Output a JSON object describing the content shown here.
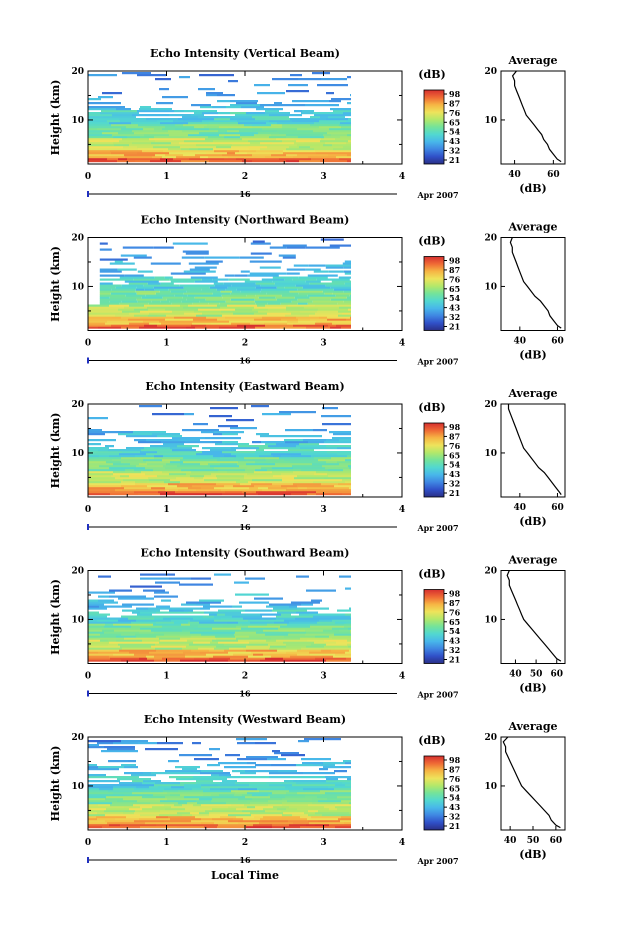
{
  "figure": {
    "footer_label": "Local Time",
    "date_label": "Apr 2007",
    "day_label": "16"
  },
  "colorbar": {
    "unit": "(dB)",
    "ticks": [
      "98",
      "87",
      "76",
      "65",
      "54",
      "43",
      "32",
      "21"
    ],
    "colors": [
      "#2a2f86",
      "#3050c8",
      "#3f86e2",
      "#48b7ea",
      "#52d8d0",
      "#74e39a",
      "#b3e86a",
      "#eee35b",
      "#f6b544",
      "#ef6a35",
      "#d62f2f"
    ]
  },
  "chart_data": [
    {
      "type": "heatmap",
      "title": "Echo Intensity (Vertical Beam)",
      "xlabel": "",
      "ylabel": "Height (km)",
      "x_ticks": [
        "0",
        "1",
        "2",
        "3",
        "4"
      ],
      "y_ticks": [
        "20",
        "10"
      ],
      "xlim": [
        0,
        4
      ],
      "ylim": [
        1,
        20
      ],
      "data_x_end": 3.35,
      "color_range_db": [
        21,
        98
      ],
      "profile": {
        "title": "Average",
        "xlabel": "(dB)",
        "x_ticks": [
          "40",
          "60"
        ],
        "xlim": [
          33,
          66
        ],
        "y_ticks": [
          "20",
          "10"
        ],
        "height_km": [
          1.5,
          2,
          3,
          4,
          5,
          6,
          7,
          8,
          9,
          10,
          11,
          12,
          13,
          14,
          15,
          16,
          17,
          18,
          19,
          20
        ],
        "intensity_db": [
          64,
          62,
          60,
          58,
          57,
          55,
          54,
          52,
          50,
          48,
          46,
          45,
          44,
          43,
          42,
          41,
          40,
          40,
          39,
          41
        ]
      }
    },
    {
      "type": "heatmap",
      "title": "Echo Intensity (Northward Beam)",
      "xlabel": "",
      "ylabel": "Height (km)",
      "x_ticks": [
        "0",
        "1",
        "2",
        "3",
        "4"
      ],
      "y_ticks": [
        "20",
        "10"
      ],
      "xlim": [
        0,
        4
      ],
      "ylim": [
        1,
        20
      ],
      "data_x_end": 3.35,
      "color_range_db": [
        21,
        98
      ],
      "profile": {
        "title": "Average",
        "xlabel": "(dB)",
        "x_ticks": [
          "40",
          "60"
        ],
        "xlim": [
          30,
          64
        ],
        "y_ticks": [
          "20",
          "10"
        ],
        "height_km": [
          1.5,
          2,
          3,
          4,
          5,
          6,
          7,
          8,
          9,
          10,
          11,
          12,
          13,
          14,
          15,
          16,
          17,
          18,
          19,
          20
        ],
        "intensity_db": [
          62,
          60,
          58,
          56,
          55,
          53,
          51,
          48,
          46,
          44,
          42,
          41,
          40,
          39,
          38,
          37,
          36,
          36,
          35,
          36
        ]
      }
    },
    {
      "type": "heatmap",
      "title": "Echo Intensity (Eastward Beam)",
      "xlabel": "",
      "ylabel": "Height (km)",
      "x_ticks": [
        "0",
        "1",
        "2",
        "3",
        "4"
      ],
      "y_ticks": [
        "20",
        "10"
      ],
      "xlim": [
        0,
        4
      ],
      "ylim": [
        1,
        20
      ],
      "data_x_end": 3.35,
      "color_range_db": [
        21,
        98
      ],
      "profile": {
        "title": "Average",
        "xlabel": "(dB)",
        "x_ticks": [
          "40",
          "60"
        ],
        "xlim": [
          30,
          64
        ],
        "y_ticks": [
          "20",
          "10"
        ],
        "height_km": [
          1.5,
          2,
          3,
          4,
          5,
          6,
          7,
          8,
          9,
          10,
          11,
          12,
          13,
          14,
          15,
          16,
          17,
          18,
          19,
          20
        ],
        "intensity_db": [
          62,
          61,
          59,
          57,
          55,
          53,
          50,
          48,
          46,
          44,
          42,
          41,
          40,
          39,
          38,
          37,
          36,
          35,
          34,
          34
        ]
      }
    },
    {
      "type": "heatmap",
      "title": "Echo Intensity (Southward Beam)",
      "xlabel": "",
      "ylabel": "Height (km)",
      "x_ticks": [
        "0",
        "1",
        "2",
        "3",
        "4"
      ],
      "y_ticks": [
        "20",
        "10"
      ],
      "xlim": [
        0,
        4
      ],
      "ylim": [
        1,
        20
      ],
      "data_x_end": 3.35,
      "color_range_db": [
        21,
        98
      ],
      "profile": {
        "title": "Average",
        "xlabel": "(dB)",
        "x_ticks": [
          "40",
          "50",
          "60"
        ],
        "xlim": [
          33,
          64
        ],
        "y_ticks": [
          "20",
          "10"
        ],
        "height_km": [
          1.5,
          2,
          3,
          4,
          5,
          6,
          7,
          8,
          9,
          10,
          11,
          12,
          13,
          14,
          15,
          16,
          17,
          18,
          19,
          20
        ],
        "intensity_db": [
          62,
          60,
          58,
          56,
          54,
          52,
          50,
          48,
          46,
          44,
          43,
          42,
          41,
          40,
          39,
          38,
          37,
          37,
          36,
          37
        ]
      }
    },
    {
      "type": "heatmap",
      "title": "Echo Intensity (Westward Beam)",
      "xlabel": "Local Time",
      "ylabel": "Height (km)",
      "x_ticks": [
        "0",
        "1",
        "2",
        "3",
        "4"
      ],
      "y_ticks": [
        "20",
        "10"
      ],
      "xlim": [
        0,
        4
      ],
      "ylim": [
        1,
        20
      ],
      "data_x_end": 3.35,
      "color_range_db": [
        21,
        98
      ],
      "profile": {
        "title": "Average",
        "xlabel": "(dB)",
        "x_ticks": [
          "40",
          "50",
          "60"
        ],
        "xlim": [
          36,
          64
        ],
        "y_ticks": [
          "20",
          "10"
        ],
        "height_km": [
          1.5,
          2,
          3,
          4,
          5,
          6,
          7,
          8,
          9,
          10,
          11,
          12,
          13,
          14,
          15,
          16,
          17,
          18,
          19,
          20
        ],
        "intensity_db": [
          62,
          60,
          58,
          57,
          55,
          53,
          51,
          49,
          47,
          45,
          44,
          43,
          42,
          41,
          40,
          39,
          38,
          38,
          37,
          39
        ]
      }
    }
  ]
}
